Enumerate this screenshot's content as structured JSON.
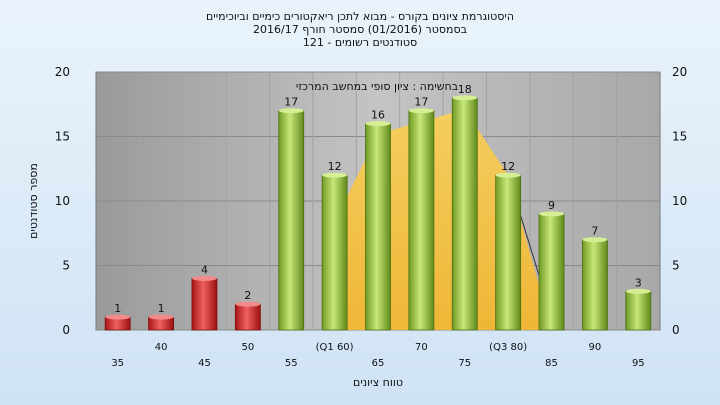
{
  "chart_data": {
    "type": "bar",
    "title_lines": [
      "היסטוגרמת ציונים בקורס - מבוא לתכן ריאקטורים כימיים וביוכימיים",
      "בסמסטר  (01/2016)  סמסטר חורף 2016/17",
      "סטודנטים רשומים - 121"
    ],
    "annotation": "בחשימה : ציון סופי במחשב המרכזי",
    "ylabel": "מספר סטודנטים",
    "xlabel": "טווח ציונים",
    "ylim": [
      0,
      20
    ],
    "yticks": [
      0,
      5,
      10,
      15,
      20
    ],
    "grid": true,
    "categories": [
      "35",
      "40",
      "45",
      "50",
      "55",
      "(Q1 60)",
      "65",
      "70",
      "75",
      "(Q3 80)",
      "85",
      "90",
      "95"
    ],
    "values": [
      1,
      1,
      4,
      2,
      17,
      12,
      16,
      17,
      18,
      12,
      9,
      7,
      3
    ],
    "bar_groups": [
      "fail",
      "fail",
      "fail",
      "fail",
      "pass",
      "pass",
      "pass",
      "pass",
      "pass",
      "pass",
      "pass",
      "pass",
      "pass"
    ],
    "colors": {
      "fail": "#e03a3a",
      "pass": "#9dc34a",
      "plot_bg": "#b9b9b9",
      "quartile_band": "#f5c64a"
    }
  }
}
